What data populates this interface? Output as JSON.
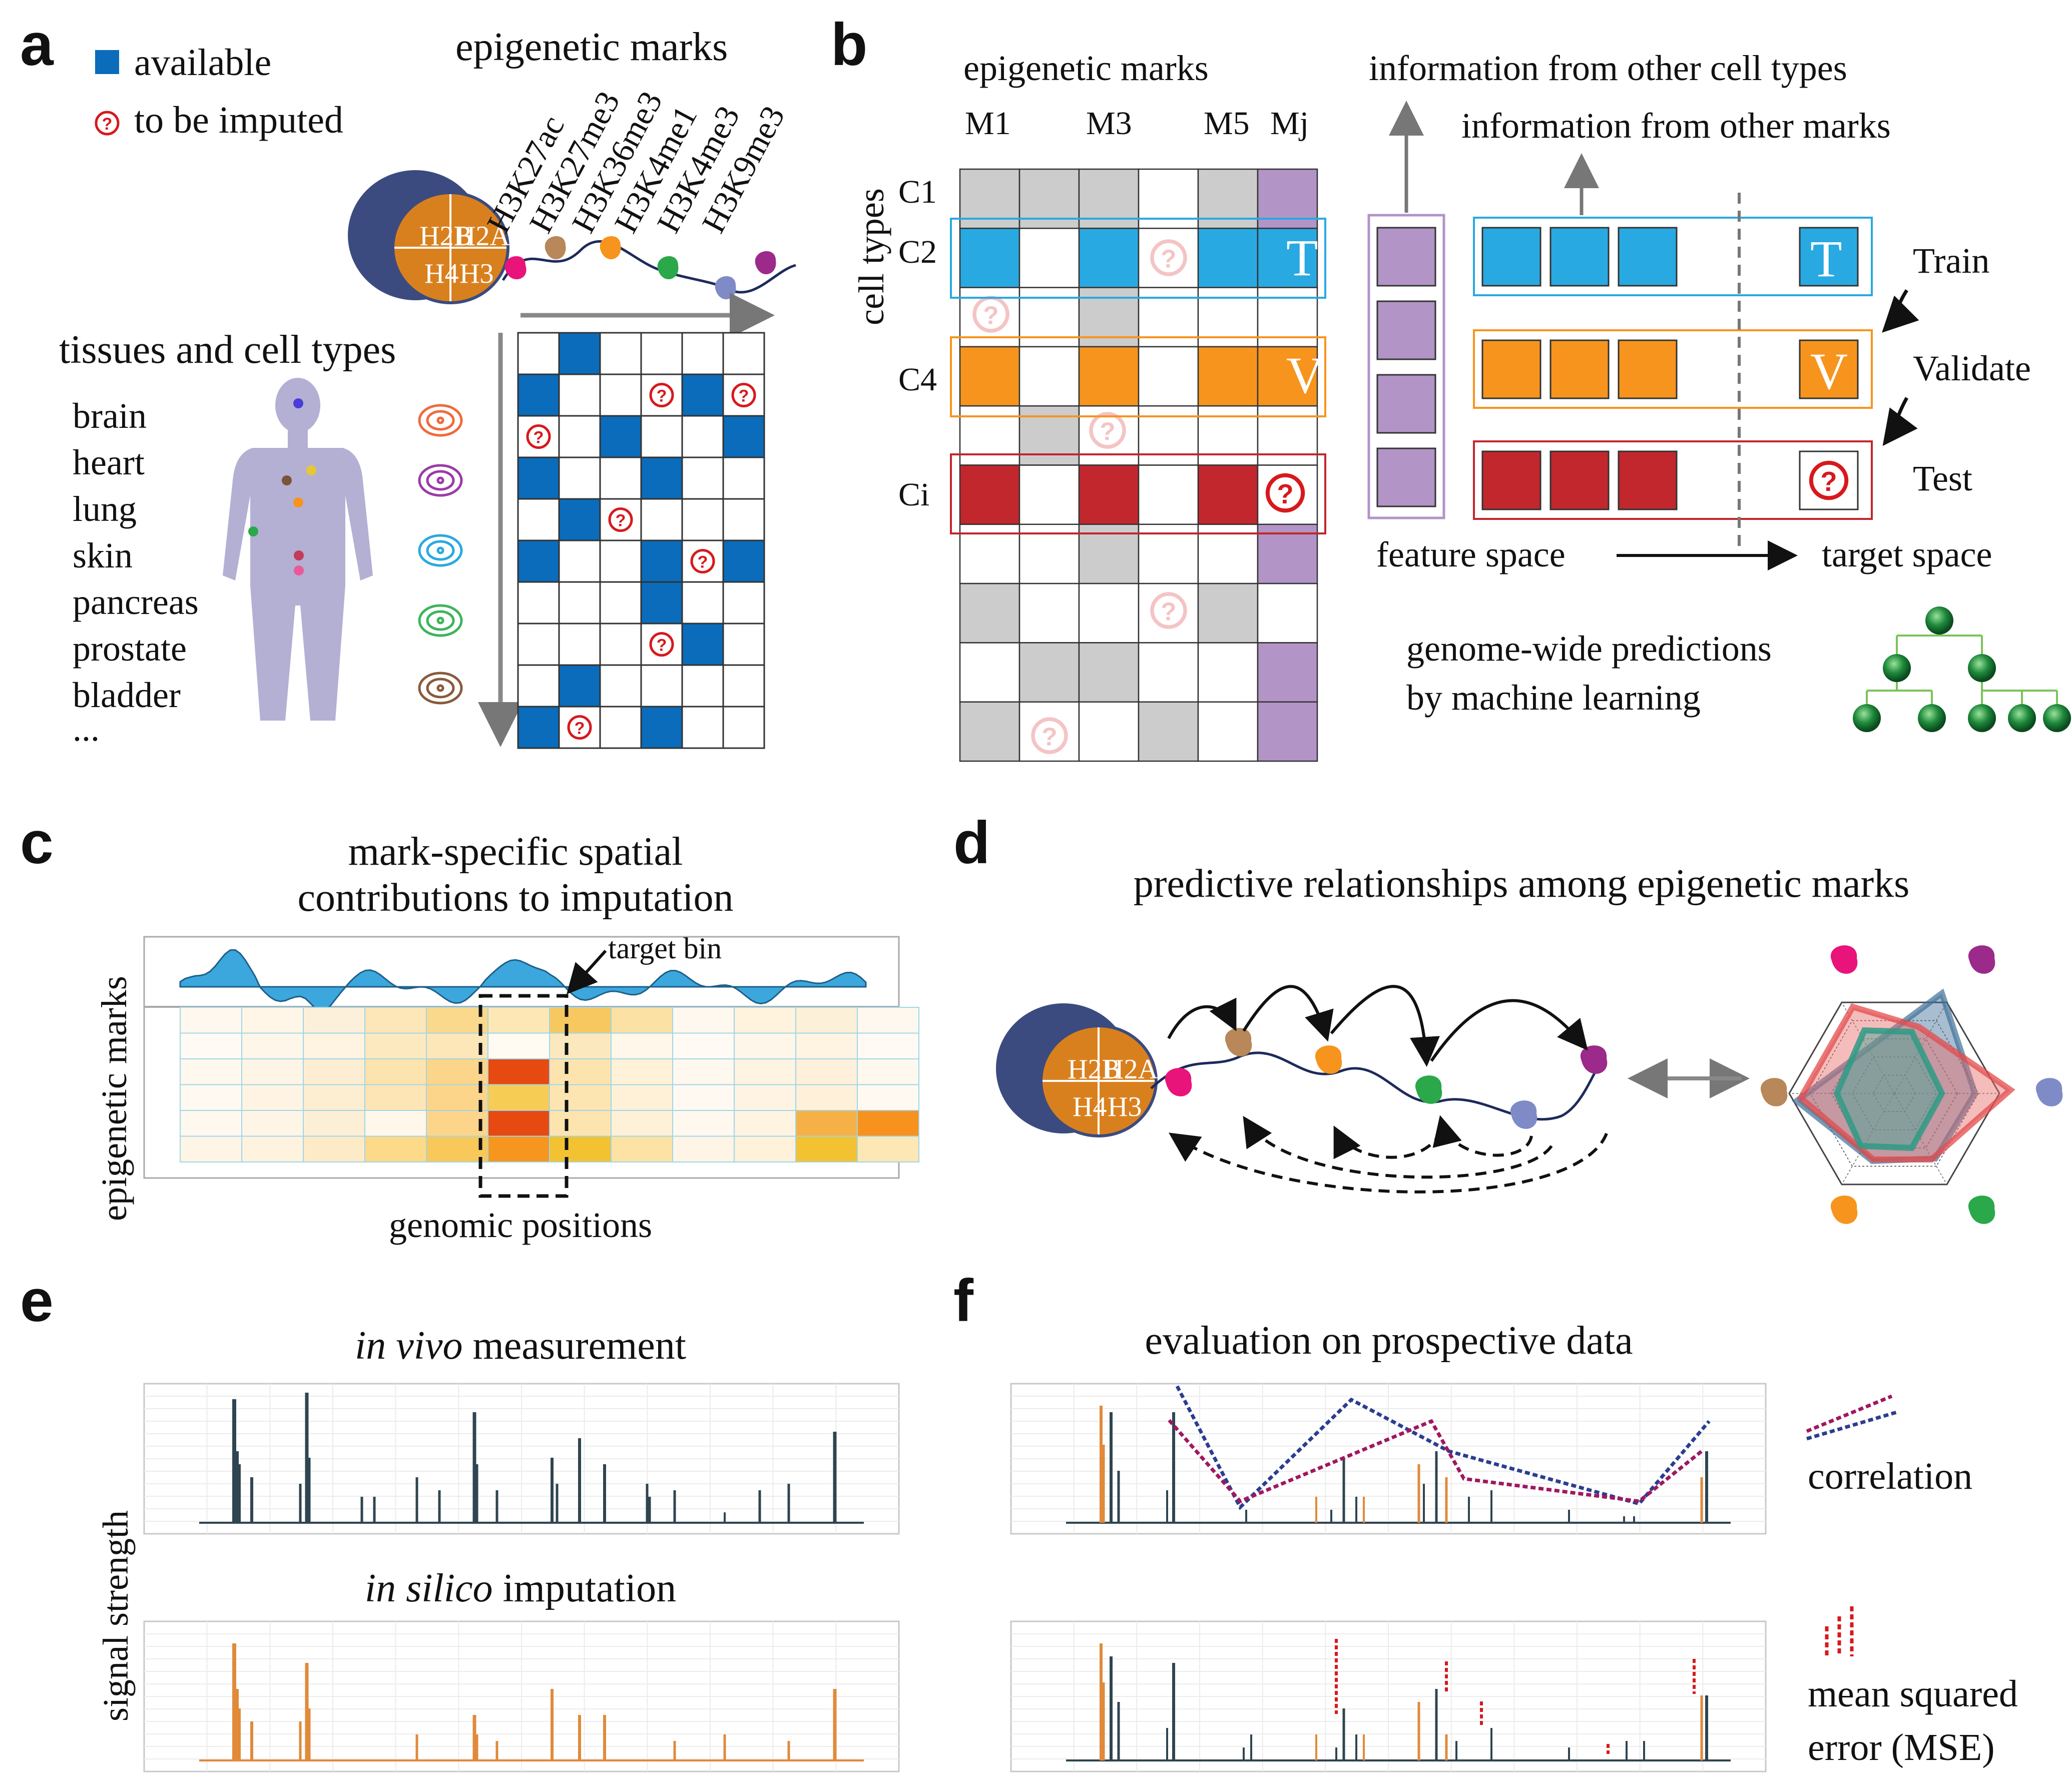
{
  "panels": {
    "a": {
      "letter": "a",
      "legend_available": "available",
      "legend_imputed": "to be imputed",
      "marks_title": "epigenetic marks",
      "histones": [
        "H2B",
        "H2A",
        "H4",
        "H3"
      ],
      "marks": [
        "H3K27ac",
        "H3K27me3",
        "H3K36me3",
        "H3K4me1",
        "H3K4me3",
        "H3K9me3"
      ],
      "tissues_title": "tissues and cell types",
      "tissues": [
        "brain",
        "heart",
        "lung",
        "skin",
        "pancreas",
        "prostate",
        "bladder",
        "..."
      ],
      "matrix": [
        ".A....",
        "A..QAQ",
        "Q.A..A",
        "A..A..",
        ".AQ...",
        "A..AQA",
        "...A..",
        "...QA.",
        ".A....",
        "AQ.A.."
      ]
    },
    "b": {
      "letter": "b",
      "marks_title": "epigenetic marks",
      "col_labels": [
        "M1",
        "M3",
        "M5",
        "Mj"
      ],
      "cell_types_label": "cell types",
      "row_labels": [
        "C1",
        "C2",
        "C4",
        "Ci"
      ],
      "info_cell_types": "information from other cell types",
      "info_marks": "information from other marks",
      "train": "Train",
      "validate": "Validate",
      "test": "Test",
      "train_letter": "T",
      "validate_letter": "V",
      "feature_space": "feature space",
      "target_space": "target space",
      "ml_line1": "genome-wide predictions",
      "ml_line2": "by machine learning"
    },
    "c": {
      "letter": "c",
      "title_line1": "mark-specific spatial",
      "title_line2": "contributions to imputation",
      "ylabel": "epigenetic marks",
      "xlabel": "genomic positions",
      "target_bin": "target bin"
    },
    "d": {
      "letter": "d",
      "title": "predictive relationships among epigenetic marks"
    },
    "e": {
      "letter": "e",
      "title_vivo_italic": "in vivo",
      "title_vivo_rest": " measurement",
      "title_silico_italic": "in silico",
      "title_silico_rest": " imputation",
      "ylabel": "signal strength"
    },
    "f": {
      "letter": "f",
      "title": "evaluation on prospective data",
      "correlation": "correlation",
      "mse_line1": "mean squared",
      "mse_line2": "error (MSE)"
    }
  },
  "colors": {
    "available_blue": "#0a6cba",
    "impute_red": "#d7191c",
    "train_blue": "#29a9e1",
    "validate_orange": "#f7941d",
    "test_red": "#c1272d",
    "target_purple": "#b294c7",
    "grey_cell": "#cccccc",
    "histone_orange": "#d9801e",
    "nucleosome_navy": "#3b4b7f",
    "signal_dark": "#2f4550",
    "signal_orange": "#e08a3a",
    "corr_purple": "#a0175f",
    "corr_navy": "#2b3d90"
  }
}
